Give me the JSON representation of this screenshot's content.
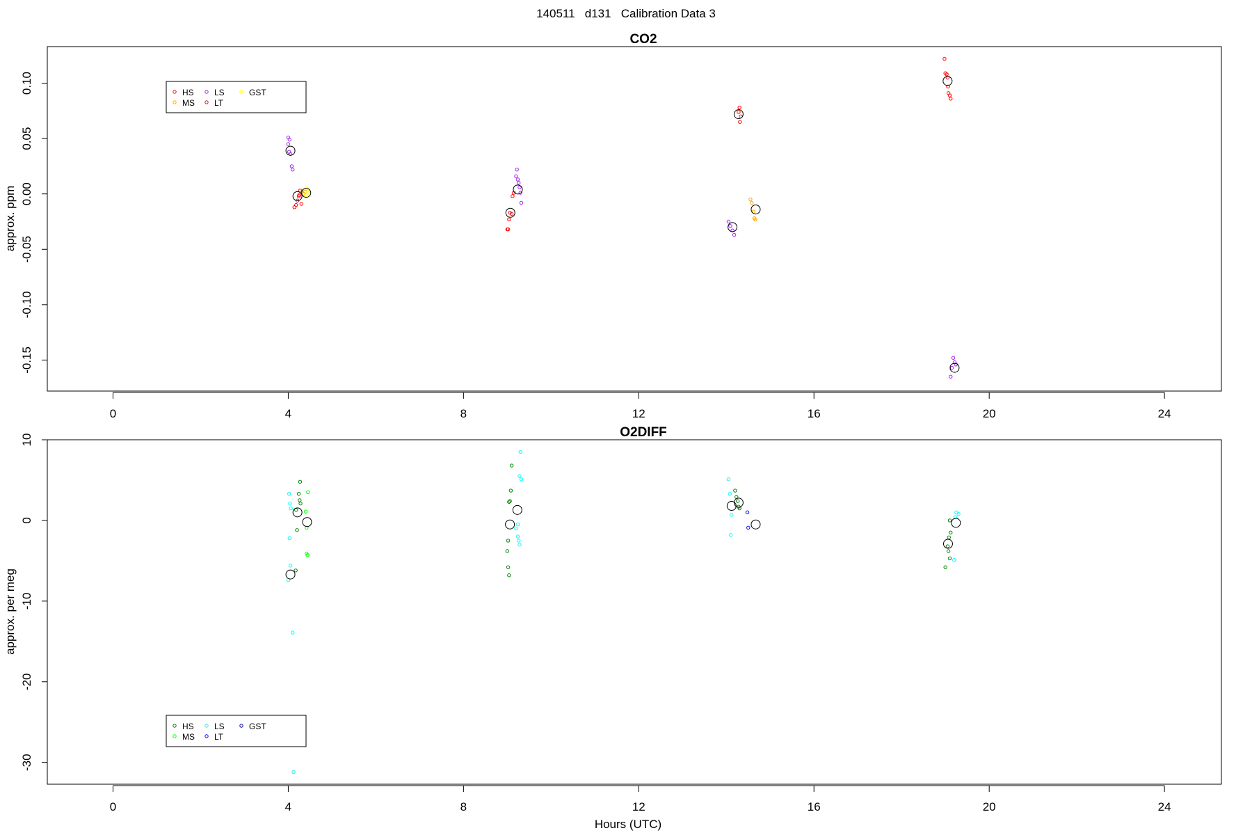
{
  "page": {
    "title": "140511   d131   Calibration Data 3"
  },
  "chart_data": [
    {
      "type": "scatter",
      "title": "CO2",
      "xlabel": "",
      "ylabel": "approx. ppm",
      "xlim": [
        -1.5,
        25.3
      ],
      "ylim": [
        -0.178,
        0.133
      ],
      "xticks": [
        0,
        4,
        8,
        12,
        16,
        20,
        24
      ],
      "yticks": [
        -0.15,
        -0.1,
        -0.05,
        0.0,
        0.05,
        0.1
      ],
      "ytick_labels": [
        "-0.15",
        "-0.10",
        "-0.05",
        "0.00",
        "0.05",
        "0.10"
      ],
      "legend": {
        "placement": "top-left",
        "entries": [
          "HS",
          "MS",
          "LS",
          "LT",
          "GST"
        ]
      },
      "series": [
        {
          "name": "HS",
          "color": "#ff0000",
          "points": [
            [
              4.14,
              -0.012
            ],
            [
              4.18,
              -0.01
            ],
            [
              4.21,
              -0.006
            ],
            [
              4.25,
              -0.001
            ],
            [
              4.27,
              0.003
            ],
            [
              4.3,
              -0.009
            ],
            [
              4.24,
              -0.002
            ],
            [
              9.0,
              -0.032
            ],
            [
              9.02,
              -0.032
            ],
            [
              9.04,
              -0.023
            ],
            [
              9.06,
              -0.017
            ],
            [
              9.1,
              -0.018
            ],
            [
              9.12,
              -0.002
            ],
            [
              9.15,
              0.001
            ],
            [
              14.3,
              0.078
            ],
            [
              14.28,
              0.074
            ],
            [
              14.33,
              0.07
            ],
            [
              14.31,
              0.065
            ],
            [
              18.98,
              0.122
            ],
            [
              19.0,
              0.109
            ],
            [
              19.03,
              0.108
            ],
            [
              19.05,
              0.105
            ],
            [
              19.07,
              0.091
            ],
            [
              19.1,
              0.089
            ],
            [
              19.12,
              0.086
            ],
            [
              19.06,
              0.097
            ]
          ]
        },
        {
          "name": "MS",
          "color": "#ffa500",
          "points": [
            [
              4.3,
              0.003
            ],
            [
              4.35,
              0.0
            ],
            [
              4.38,
              0.002
            ],
            [
              14.55,
              -0.005
            ],
            [
              14.58,
              -0.008
            ],
            [
              14.62,
              -0.016
            ],
            [
              14.64,
              -0.022
            ],
            [
              14.66,
              -0.023
            ]
          ]
        },
        {
          "name": "LS",
          "color": "#a020f0",
          "points": [
            [
              4.0,
              0.051
            ],
            [
              4.03,
              0.049
            ],
            [
              4.0,
              0.045
            ],
            [
              4.02,
              0.038
            ],
            [
              4.05,
              0.036
            ],
            [
              4.08,
              0.025
            ],
            [
              4.1,
              0.022
            ],
            [
              9.22,
              0.022
            ],
            [
              9.2,
              0.016
            ],
            [
              9.24,
              0.013
            ],
            [
              9.26,
              0.01
            ],
            [
              9.28,
              0.006
            ],
            [
              9.3,
              0.001
            ],
            [
              9.32,
              -0.008
            ],
            [
              14.05,
              -0.025
            ],
            [
              14.09,
              -0.029
            ],
            [
              14.14,
              -0.033
            ],
            [
              14.18,
              -0.037
            ],
            [
              19.18,
              -0.148
            ],
            [
              19.21,
              -0.152
            ],
            [
              19.24,
              -0.154
            ],
            [
              19.15,
              -0.157
            ],
            [
              19.12,
              -0.165
            ]
          ]
        },
        {
          "name": "LT",
          "color": "#a52a2a",
          "points": []
        },
        {
          "name": "GST",
          "color": "#ffff00",
          "points": [
            [
              4.42,
              0.005
            ],
            [
              4.46,
              0.002
            ],
            [
              4.4,
              -0.001
            ],
            [
              4.44,
              0.001
            ]
          ]
        }
      ],
      "means": [
        [
          4.05,
          0.039
        ],
        [
          4.21,
          -0.002
        ],
        [
          4.41,
          0.001
        ],
        [
          9.07,
          -0.017
        ],
        [
          9.24,
          0.004
        ],
        [
          14.14,
          -0.03
        ],
        [
          14.28,
          0.072
        ],
        [
          14.67,
          -0.014
        ],
        [
          19.05,
          0.102
        ],
        [
          19.21,
          -0.157
        ]
      ]
    },
    {
      "type": "scatter",
      "title": "O2DIFF",
      "xlabel": "Hours (UTC)",
      "ylabel": "approx. per meg",
      "xlim": [
        -1.5,
        25.3
      ],
      "ylim": [
        -32.7,
        10.0
      ],
      "xticks": [
        0,
        4,
        8,
        12,
        16,
        20,
        24
      ],
      "yticks": [
        -30,
        -20,
        -10,
        0,
        10
      ],
      "ytick_labels": [
        "-30",
        "-20",
        "-10",
        "0",
        "10"
      ],
      "legend": {
        "placement": "bottom-left",
        "entries": [
          "HS",
          "MS",
          "LS",
          "LT",
          "GST"
        ]
      },
      "series": [
        {
          "name": "HS",
          "color": "#008000",
          "points": [
            [
              4.27,
              4.8
            ],
            [
              4.24,
              3.3
            ],
            [
              4.26,
              2.5
            ],
            [
              4.28,
              2.1
            ],
            [
              4.18,
              1.3
            ],
            [
              4.2,
              -1.2
            ],
            [
              4.17,
              -6.2
            ],
            [
              9.1,
              6.8
            ],
            [
              9.08,
              3.7
            ],
            [
              9.06,
              2.4
            ],
            [
              9.04,
              2.3
            ],
            [
              9.02,
              -2.5
            ],
            [
              9.0,
              -3.8
            ],
            [
              9.02,
              -5.8
            ],
            [
              9.04,
              -6.8
            ],
            [
              14.2,
              3.7
            ],
            [
              14.23,
              2.9
            ],
            [
              14.26,
              2.4
            ],
            [
              14.28,
              1.7
            ],
            [
              14.3,
              1.5
            ],
            [
              19.1,
              0.0
            ],
            [
              19.12,
              -1.5
            ],
            [
              19.08,
              -2.1
            ],
            [
              19.05,
              -3.2
            ],
            [
              19.07,
              -3.8
            ],
            [
              19.1,
              -4.7
            ],
            [
              19.0,
              -5.8
            ]
          ]
        },
        {
          "name": "MS",
          "color": "#00ff00",
          "points": [
            [
              4.45,
              3.5
            ],
            [
              4.4,
              1.1
            ],
            [
              4.42,
              -0.9
            ],
            [
              4.44,
              -4.3
            ],
            [
              4.42,
              -4.1
            ]
          ]
        },
        {
          "name": "LS",
          "color": "#00ffff",
          "points": [
            [
              4.02,
              3.3
            ],
            [
              4.04,
              2.1
            ],
            [
              4.06,
              1.5
            ],
            [
              4.03,
              -2.2
            ],
            [
              4.05,
              -5.6
            ],
            [
              4.0,
              -7.4
            ],
            [
              4.1,
              -13.9
            ],
            [
              4.12,
              -31.2
            ],
            [
              9.3,
              8.5
            ],
            [
              9.28,
              5.5
            ],
            [
              9.32,
              5.1
            ],
            [
              9.24,
              -0.5
            ],
            [
              9.2,
              -1.0
            ],
            [
              9.24,
              -2.0
            ],
            [
              9.26,
              -2.5
            ],
            [
              9.28,
              -3.0
            ],
            [
              14.05,
              5.1
            ],
            [
              14.08,
              3.3
            ],
            [
              14.12,
              0.7
            ],
            [
              14.1,
              -1.8
            ],
            [
              19.25,
              1.0
            ],
            [
              19.3,
              0.8
            ],
            [
              19.23,
              0.4
            ],
            [
              19.2,
              -4.9
            ]
          ]
        },
        {
          "name": "LT",
          "color": "#0000ff",
          "points": [
            [
              14.48,
              1.0
            ],
            [
              14.5,
              -0.9
            ]
          ]
        },
        {
          "name": "GST",
          "color": "#00008b",
          "points": []
        }
      ],
      "means": [
        [
          4.05,
          -6.7
        ],
        [
          4.21,
          1.0
        ],
        [
          4.43,
          -0.2
        ],
        [
          9.06,
          -0.5
        ],
        [
          9.23,
          1.3
        ],
        [
          14.12,
          1.8
        ],
        [
          14.28,
          2.2
        ],
        [
          14.67,
          -0.5
        ],
        [
          19.06,
          -2.9
        ],
        [
          19.24,
          -0.3
        ]
      ]
    }
  ]
}
